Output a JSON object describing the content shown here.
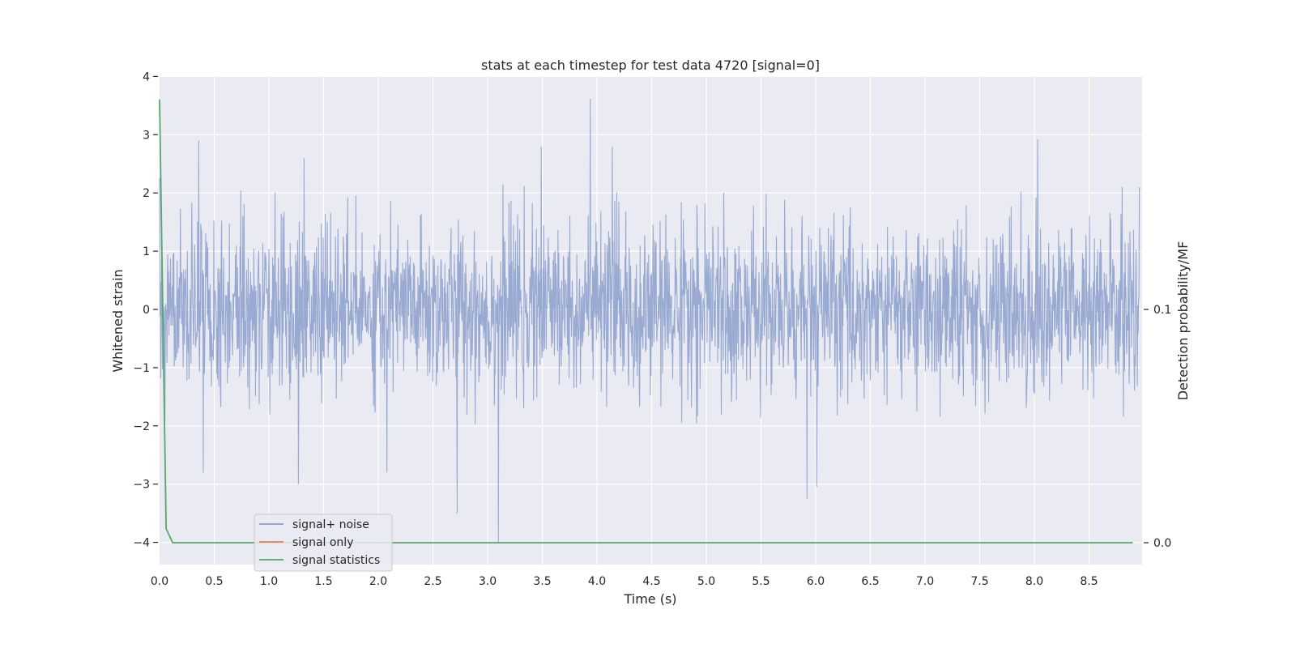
{
  "chart_data": {
    "type": "line",
    "title": "stats at each timestep for test data 4720 [signal=0]",
    "xlabel": "Time (s)",
    "ylabel": "Whitened strain",
    "y2label": "Detection probability/MF",
    "xlim": [
      0.0,
      8.96
    ],
    "ylim": [
      -4.35,
      4.0
    ],
    "y2lim": [
      -0.009,
      0.2
    ],
    "x_ticks": [
      "0.0",
      "0.5",
      "1.0",
      "1.5",
      "2.0",
      "2.5",
      "3.0",
      "3.5",
      "4.0",
      "4.5",
      "5.0",
      "5.5",
      "6.0",
      "6.5",
      "7.0",
      "7.5",
      "8.0",
      "8.5"
    ],
    "y_ticks": [
      "4",
      "3",
      "2",
      "1",
      "0",
      "−1",
      "−2",
      "−3",
      "−4"
    ],
    "y2_ticks": [
      "0.1",
      "0.0"
    ],
    "grid": true,
    "legend_position": "lower-left",
    "series": [
      {
        "name": "signal+ noise",
        "color": "#8a9fcb",
        "axis": "left",
        "kind": "noise",
        "noise_envelope": [
          -2.0,
          2.2
        ],
        "points": [
          [
            0.0,
            2.25
          ],
          [
            0.05,
            -1.9
          ],
          [
            0.4,
            -2.8
          ],
          [
            0.36,
            2.9
          ],
          [
            1.27,
            -3.0
          ],
          [
            1.32,
            2.6
          ],
          [
            2.08,
            -2.8
          ],
          [
            2.72,
            -3.5
          ],
          [
            3.1,
            -4.0
          ],
          [
            3.49,
            2.8
          ],
          [
            3.94,
            3.62
          ],
          [
            4.14,
            2.8
          ],
          [
            5.92,
            -3.25
          ],
          [
            6.01,
            -3.05
          ],
          [
            8.03,
            2.92
          ],
          [
            8.96,
            2.1
          ]
        ]
      },
      {
        "name": "signal only",
        "color": "#dd8452",
        "axis": "left",
        "points": []
      },
      {
        "name": "signal statistics",
        "color": "#55a868",
        "axis": "right",
        "points": [
          [
            0.0,
            0.19
          ],
          [
            0.06,
            0.006
          ],
          [
            0.12,
            0.0
          ],
          [
            8.9,
            0.0
          ]
        ]
      }
    ]
  }
}
